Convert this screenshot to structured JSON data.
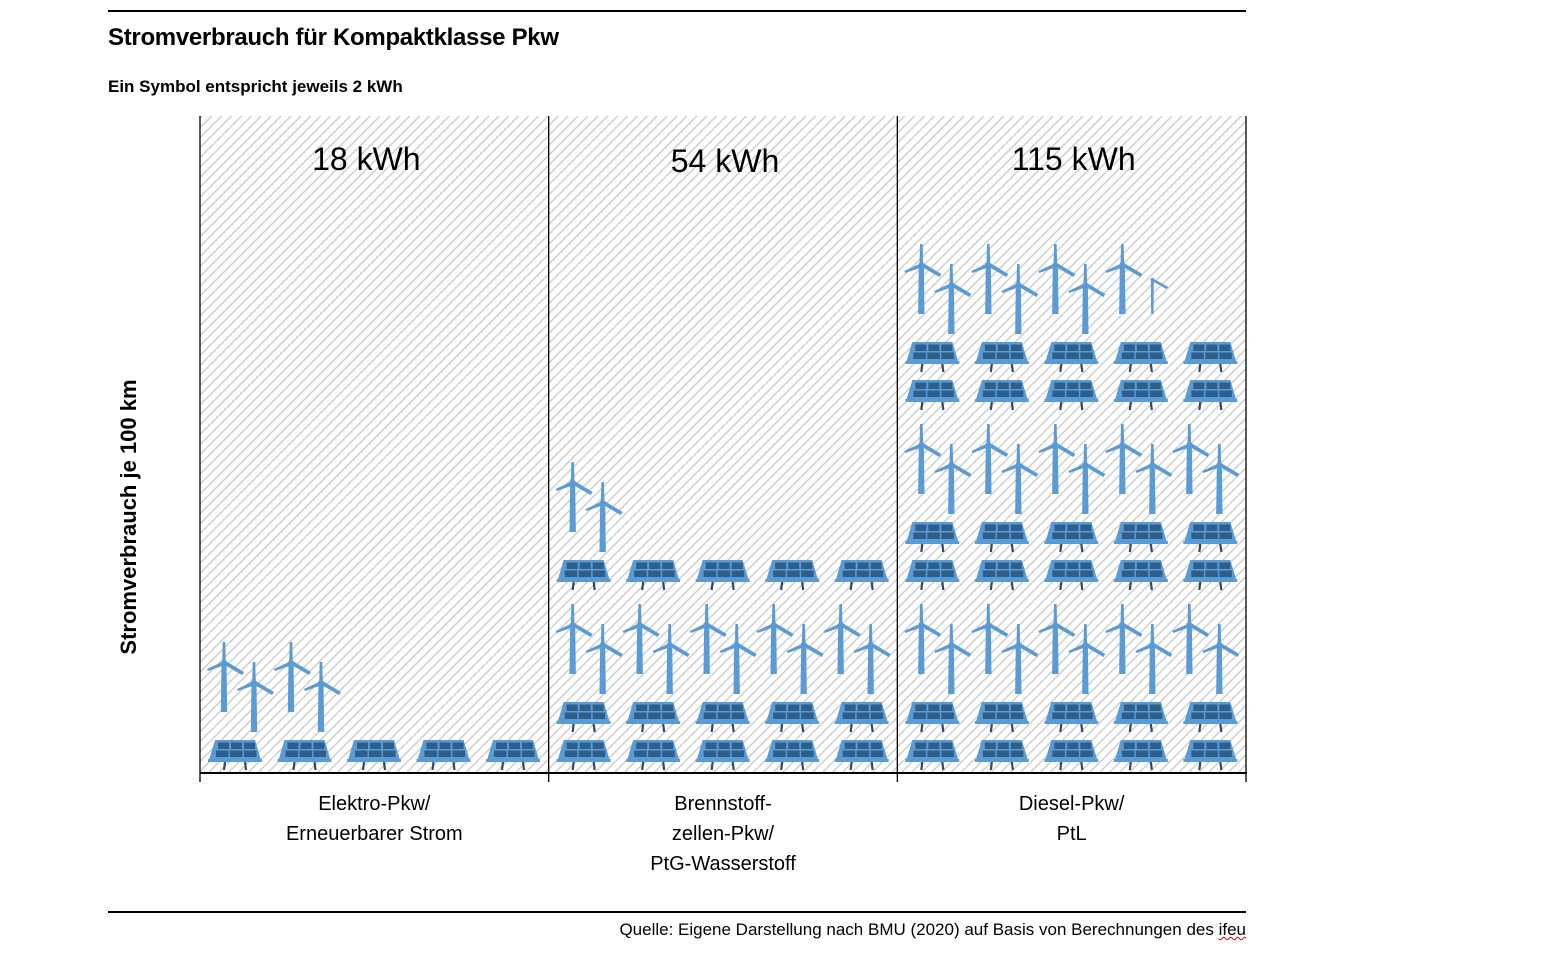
{
  "header": {
    "title": "Stromverbrauch für Kompaktklasse Pkw",
    "subtitle": "Ein Symbol entspricht jeweils 2 kWh"
  },
  "footer": {
    "source_prefix": "Quelle: Eigene Darstellung nach BMU (2020) auf Basis von Berechnungen des ",
    "source_org": "ifeu"
  },
  "colors": {
    "turbine": "#5b9bd5",
    "solar_frame": "#5b9bd5",
    "solar_cells": "#2e5f8a",
    "solar_legs": "#2e4a66",
    "hatch": "#cfcfcf",
    "axis": "#000000"
  },
  "icons": {
    "solar": "solar-panel-icon",
    "wind": "wind-turbine-icon"
  },
  "chart_data": {
    "type": "pictogram-bar",
    "title": "Stromverbrauch für Kompaktklasse Pkw",
    "subtitle": "Ein Symbol entspricht jeweils 2 kWh",
    "ylabel": "Stromverbrauch je 100 km",
    "xlabel": "",
    "unit": "kWh",
    "kwh_per_symbol": 2,
    "categories": [
      [
        "Elektro-Pkw/",
        "Erneuerbarer Strom"
      ],
      [
        "Brennstoff-",
        "zellen-Pkw/",
        "PtG-Wasserstoff"
      ],
      [
        "Diesel-Pkw/",
        "PtL"
      ]
    ],
    "values": [
      18,
      54,
      115
    ],
    "value_labels": [
      "18 kWh",
      "54 kWh",
      "115 kWh"
    ],
    "symbol_rows": [
      [
        {
          "type": "solar",
          "count": 5
        },
        {
          "type": "wind",
          "count": 4
        }
      ],
      [
        {
          "type": "solar",
          "count": 5
        },
        {
          "type": "solar",
          "count": 5
        },
        {
          "type": "wind",
          "count": 10
        },
        {
          "type": "solar",
          "count": 5
        },
        {
          "type": "wind",
          "count": 2
        }
      ],
      [
        {
          "type": "solar",
          "count": 5
        },
        {
          "type": "solar",
          "count": 5
        },
        {
          "type": "wind",
          "count": 10
        },
        {
          "type": "solar",
          "count": 5
        },
        {
          "type": "solar",
          "count": 5
        },
        {
          "type": "wind",
          "count": 10
        },
        {
          "type": "solar",
          "count": 5
        },
        {
          "type": "solar",
          "count": 5
        },
        {
          "type": "wind",
          "count": 7.5
        }
      ]
    ],
    "grid": false,
    "legend": "none"
  }
}
